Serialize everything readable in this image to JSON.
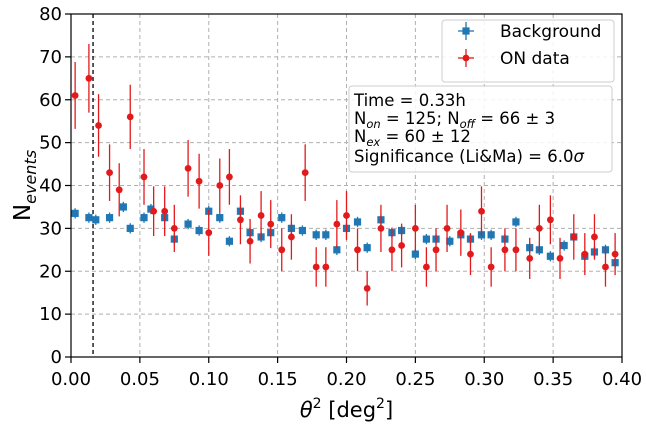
{
  "chart_data": {
    "type": "scatter",
    "xlabel": {
      "base": "θ",
      "sup": "2",
      "mid": " [deg",
      "sup2": "2",
      "end": "]"
    },
    "ylabel": {
      "base": "N",
      "sub": "events"
    },
    "xlim": [
      0.0,
      0.4
    ],
    "ylim": [
      0,
      80
    ],
    "xticks": [
      "0.00",
      "0.05",
      "0.10",
      "0.15",
      "0.20",
      "0.25",
      "0.30",
      "0.35",
      "0.40"
    ],
    "yticks": [
      "0",
      "10",
      "20",
      "30",
      "40",
      "50",
      "60",
      "70",
      "80"
    ],
    "grid": true,
    "legend_position": "top-right",
    "cut_line_x": 0.016,
    "info_box": {
      "time": "Time = 0.33h",
      "counts": {
        "a": "N",
        "a_sub": "on",
        "b": " = 125; N",
        "b_sub": "off",
        "c": " = 66 ± 3"
      },
      "excess": {
        "a": "N",
        "a_sub": "ex",
        "b": " = 60 ± 12"
      },
      "significance": {
        "a": "Significance (Li&Ma) = 6.0",
        "sigma": "σ"
      }
    },
    "bin_half_width": 0.002,
    "series": [
      {
        "name": "Background",
        "color": "#1f77b4",
        "marker": "square",
        "points": [
          [
            0.003,
            33.5,
            1.2
          ],
          [
            0.013,
            32.5,
            1.2
          ],
          [
            0.018,
            32.0,
            1.2
          ],
          [
            0.028,
            32.5,
            1.2
          ],
          [
            0.038,
            35.0,
            1.2
          ],
          [
            0.043,
            30.0,
            1.2
          ],
          [
            0.053,
            32.5,
            1.2
          ],
          [
            0.058,
            34.5,
            1.2
          ],
          [
            0.068,
            32.5,
            1.2
          ],
          [
            0.075,
            27.5,
            1.2
          ],
          [
            0.085,
            31.0,
            1.2
          ],
          [
            0.093,
            29.5,
            1.2
          ],
          [
            0.1,
            34.0,
            1.2
          ],
          [
            0.108,
            32.5,
            1.2
          ],
          [
            0.115,
            27.0,
            1.2
          ],
          [
            0.123,
            34.0,
            1.2
          ],
          [
            0.13,
            29.0,
            1.2
          ],
          [
            0.138,
            28.0,
            1.2
          ],
          [
            0.145,
            29.0,
            1.2
          ],
          [
            0.153,
            32.5,
            1.2
          ],
          [
            0.16,
            30.0,
            1.2
          ],
          [
            0.168,
            29.5,
            1.2
          ],
          [
            0.178,
            28.5,
            1.2
          ],
          [
            0.185,
            28.5,
            1.2
          ],
          [
            0.193,
            25.0,
            1.2
          ],
          [
            0.2,
            30.0,
            1.2
          ],
          [
            0.208,
            31.5,
            1.2
          ],
          [
            0.215,
            25.5,
            1.2
          ],
          [
            0.225,
            32.0,
            1.2
          ],
          [
            0.233,
            29.0,
            1.2
          ],
          [
            0.24,
            29.5,
            1.2
          ],
          [
            0.25,
            24.0,
            1.2
          ],
          [
            0.258,
            27.5,
            1.2
          ],
          [
            0.265,
            27.5,
            1.2
          ],
          [
            0.275,
            27.0,
            1.2
          ],
          [
            0.283,
            28.5,
            1.2
          ],
          [
            0.29,
            27.5,
            1.2
          ],
          [
            0.298,
            28.5,
            1.2
          ],
          [
            0.305,
            28.5,
            1.2
          ],
          [
            0.315,
            27.5,
            1.2
          ],
          [
            0.323,
            31.5,
            1.2
          ],
          [
            0.333,
            25.5,
            1.2
          ],
          [
            0.34,
            25.0,
            1.2
          ],
          [
            0.348,
            23.5,
            1.2
          ],
          [
            0.358,
            26.0,
            1.2
          ],
          [
            0.365,
            28.0,
            1.2
          ],
          [
            0.373,
            23.5,
            1.2
          ],
          [
            0.38,
            24.5,
            1.2
          ],
          [
            0.388,
            25.0,
            1.2
          ],
          [
            0.395,
            22.0,
            1.2
          ]
        ]
      },
      {
        "name": "ON data",
        "color": "#e31a1c",
        "marker": "circle",
        "points": [
          [
            0.003,
            61.0,
            7.8
          ],
          [
            0.013,
            65.0,
            8.0
          ],
          [
            0.02,
            54.0,
            7.3
          ],
          [
            0.028,
            43.0,
            6.6
          ],
          [
            0.035,
            39.0,
            6.2
          ],
          [
            0.043,
            56.0,
            7.5
          ],
          [
            0.053,
            42.0,
            6.5
          ],
          [
            0.06,
            34.0,
            5.8
          ],
          [
            0.068,
            34.0,
            5.8
          ],
          [
            0.075,
            30.0,
            5.5
          ],
          [
            0.085,
            44.0,
            6.6
          ],
          [
            0.093,
            41.0,
            6.4
          ],
          [
            0.1,
            29.0,
            5.4
          ],
          [
            0.108,
            40.0,
            6.3
          ],
          [
            0.115,
            42.0,
            6.5
          ],
          [
            0.123,
            32.0,
            5.7
          ],
          [
            0.13,
            27.0,
            5.2
          ],
          [
            0.138,
            33.0,
            5.7
          ],
          [
            0.145,
            31.0,
            5.6
          ],
          [
            0.153,
            25.0,
            5.0
          ],
          [
            0.16,
            28.0,
            5.3
          ],
          [
            0.17,
            43.0,
            6.6
          ],
          [
            0.178,
            21.0,
            4.6
          ],
          [
            0.185,
            21.0,
            4.6
          ],
          [
            0.193,
            31.0,
            5.6
          ],
          [
            0.2,
            33.0,
            5.7
          ],
          [
            0.208,
            25.0,
            5.0
          ],
          [
            0.215,
            16.0,
            4.0
          ],
          [
            0.225,
            30.0,
            5.5
          ],
          [
            0.233,
            25.0,
            5.0
          ],
          [
            0.24,
            26.0,
            5.1
          ],
          [
            0.25,
            30.0,
            5.5
          ],
          [
            0.258,
            21.0,
            4.6
          ],
          [
            0.265,
            25.0,
            5.0
          ],
          [
            0.273,
            30.0,
            5.5
          ],
          [
            0.283,
            29.0,
            5.4
          ],
          [
            0.29,
            24.0,
            4.9
          ],
          [
            0.298,
            34.0,
            5.8
          ],
          [
            0.305,
            21.0,
            4.6
          ],
          [
            0.315,
            25.0,
            5.0
          ],
          [
            0.323,
            25.0,
            5.0
          ],
          [
            0.333,
            23.0,
            4.8
          ],
          [
            0.34,
            30.0,
            5.5
          ],
          [
            0.348,
            32.0,
            5.7
          ],
          [
            0.355,
            23.0,
            4.8
          ],
          [
            0.365,
            28.0,
            5.3
          ],
          [
            0.373,
            24.0,
            4.9
          ],
          [
            0.38,
            28.0,
            5.3
          ],
          [
            0.388,
            21.0,
            4.6
          ],
          [
            0.395,
            24.0,
            4.9
          ]
        ]
      }
    ]
  }
}
